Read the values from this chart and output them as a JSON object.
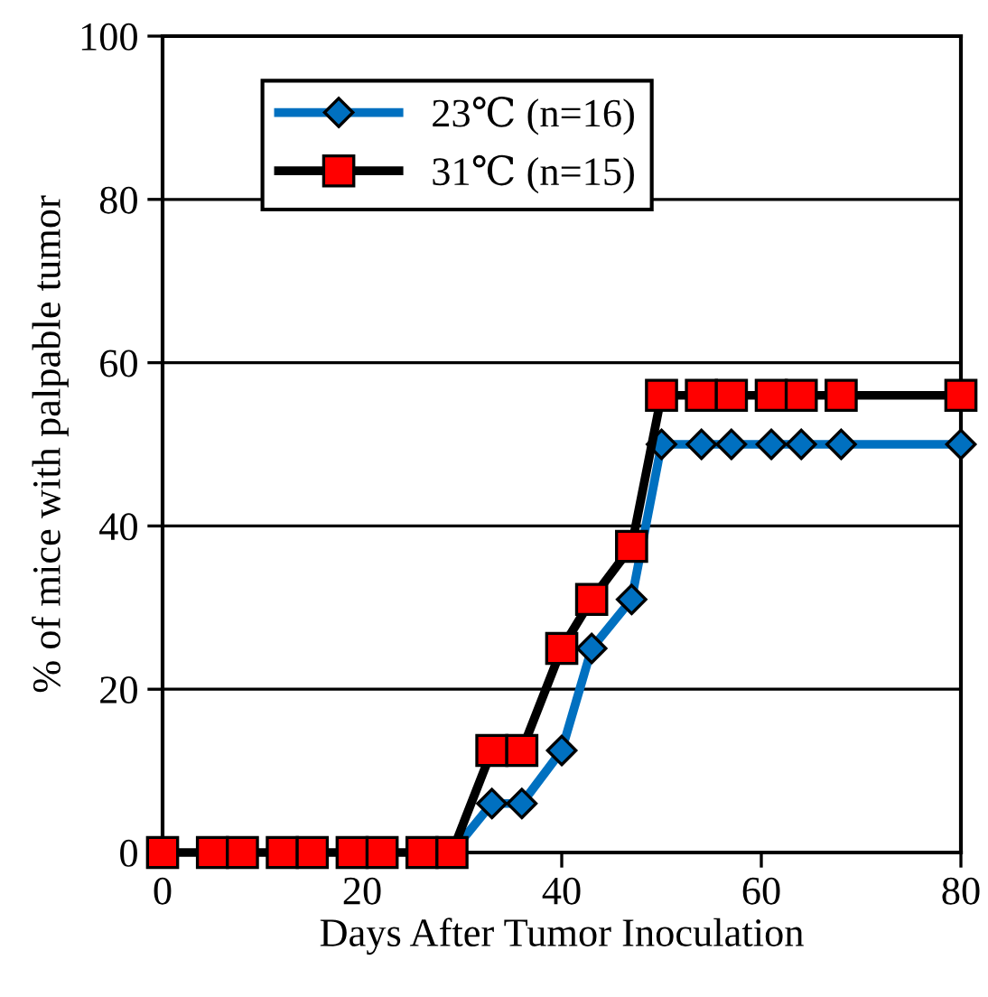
{
  "chart_data": {
    "type": "line",
    "xlabel": "Days After Tumor Inoculation",
    "ylabel": "% of mice with palpable tumor",
    "xlim": [
      0,
      80
    ],
    "xticks": [
      0,
      20,
      40,
      60,
      80
    ],
    "ylim": [
      0,
      100
    ],
    "yticks": [
      0,
      20,
      40,
      60,
      80,
      100
    ],
    "grid": "y",
    "legend": "top left",
    "series": [
      {
        "name": "23℃ (n=16)",
        "color": "#0070c0",
        "marker": "diamond",
        "x": [
          29,
          33,
          36,
          40,
          43,
          47,
          50,
          54,
          57,
          61,
          64,
          68,
          80
        ],
        "values": [
          0,
          6,
          6,
          12.5,
          25,
          31,
          50,
          50,
          50,
          50,
          50,
          50,
          50
        ]
      },
      {
        "name": "31℃ (n=15)",
        "color": "#000000",
        "colors": [
          "#ff0000",
          "#ff0000",
          "#ff0000",
          "#ff0000",
          "#ff0000",
          "#ff0000",
          "#ff0000",
          "#ff0000",
          "#ff0000",
          "#ff0000",
          "#ff0000",
          "#ff0000",
          "#ff0000",
          "#ff0000",
          "#ff0000",
          "#ff0000",
          "#ff0000",
          "#ff0000",
          "#ff0000",
          "#ff0000",
          "#ff0000"
        ],
        "marker": "square",
        "x": [
          0,
          5,
          8,
          12,
          15,
          19,
          22,
          26,
          29,
          33,
          36,
          40,
          43,
          47,
          50,
          54,
          57,
          61,
          64,
          68,
          80
        ],
        "values": [
          0,
          0,
          0,
          0,
          0,
          0,
          0,
          0,
          0,
          12.5,
          12.5,
          25,
          31,
          37.5,
          56,
          56,
          56,
          56,
          56,
          56,
          56
        ]
      }
    ]
  }
}
